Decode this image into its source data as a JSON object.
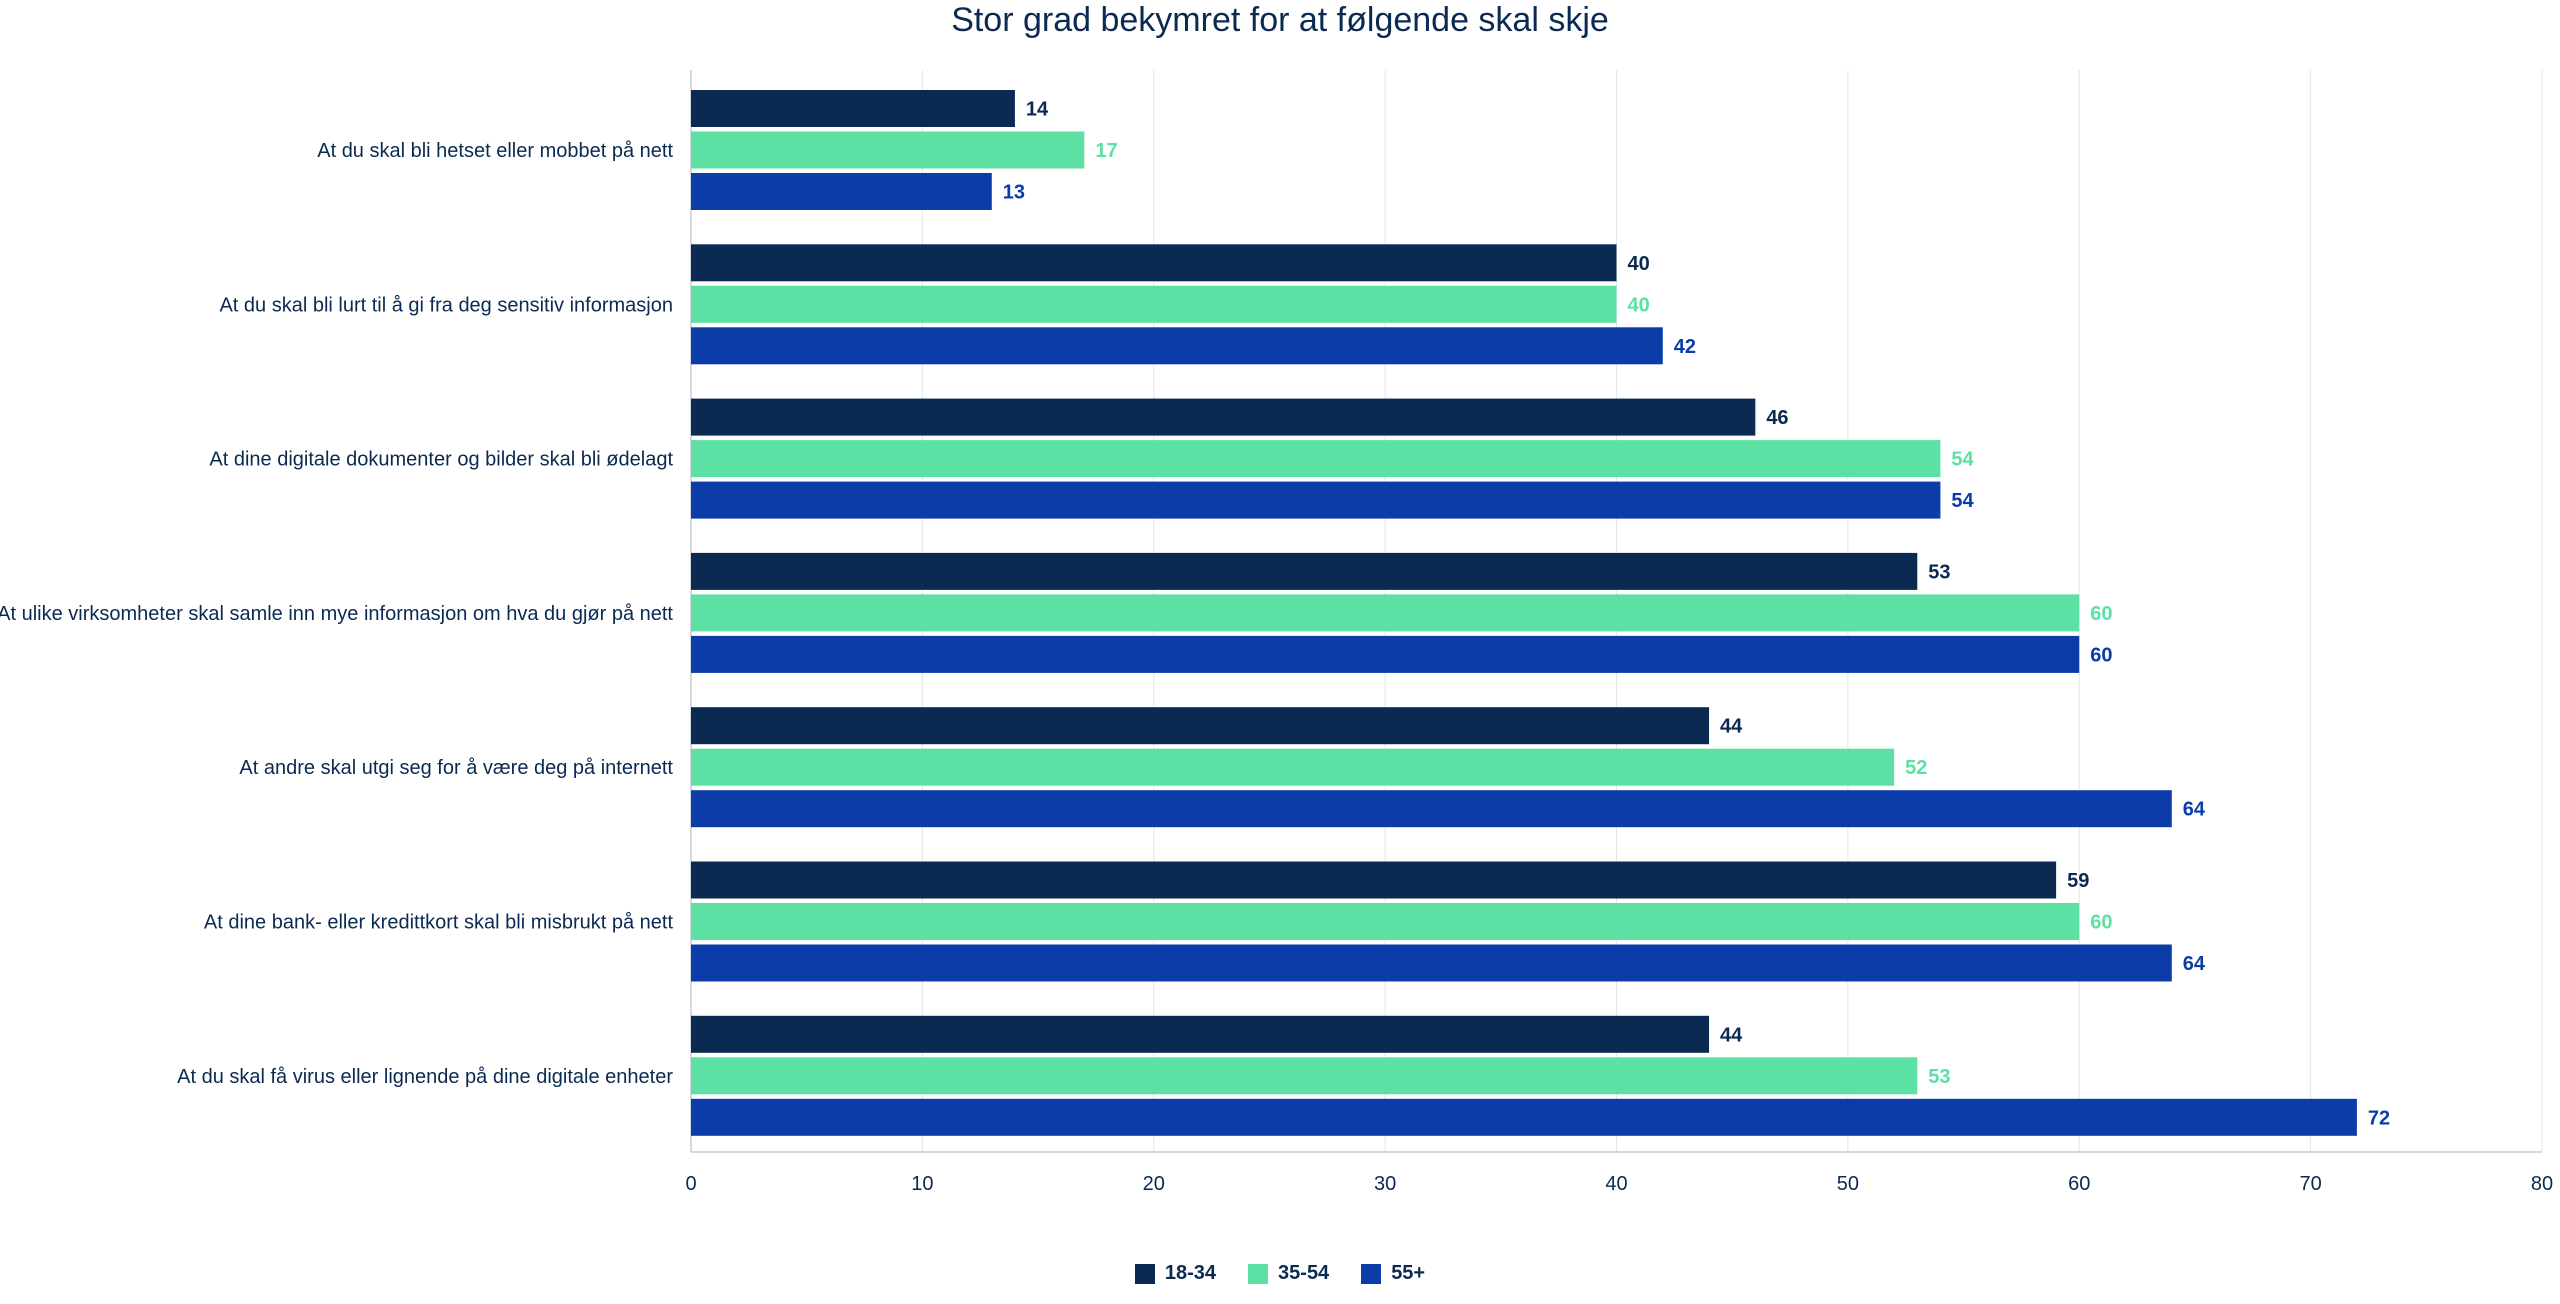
{
  "chart_data": {
    "type": "bar",
    "orientation": "horizontal",
    "title": "Stor grad bekymret for at følgende skal skje",
    "xlabel": "",
    "ylabel": "",
    "xlim": [
      0,
      80
    ],
    "x_ticks": [
      0,
      10,
      20,
      30,
      40,
      50,
      60,
      70,
      80
    ],
    "grid": true,
    "legend_position": "bottom",
    "categories": [
      "At du skal bli hetset eller mobbet på nett",
      "At du skal bli lurt til å gi fra deg sensitiv informasjon",
      "At dine digitale dokumenter og bilder skal bli ødelagt",
      "At ulike virksomheter skal samle inn mye informasjon om hva du gjør på nett",
      "At andre skal utgi seg for å være deg på internett",
      "At dine bank- eller kredittkort skal bli misbrukt på nett",
      "At du skal få virus eller lignende på dine digitale enheter"
    ],
    "series": [
      {
        "name": "18-34",
        "color": "#0b2a52",
        "values": [
          14,
          40,
          46,
          53,
          44,
          59,
          44
        ]
      },
      {
        "name": "35-54",
        "color": "#5ce0a3",
        "values": [
          17,
          40,
          54,
          60,
          52,
          60,
          53
        ]
      },
      {
        "name": "55+",
        "color": "#0c3ca8",
        "values": [
          13,
          42,
          54,
          60,
          64,
          64,
          72
        ]
      }
    ]
  },
  "colors": {
    "text": "#0b2a52",
    "grid": "#e3e6ea",
    "axis": "#c9ced6"
  }
}
